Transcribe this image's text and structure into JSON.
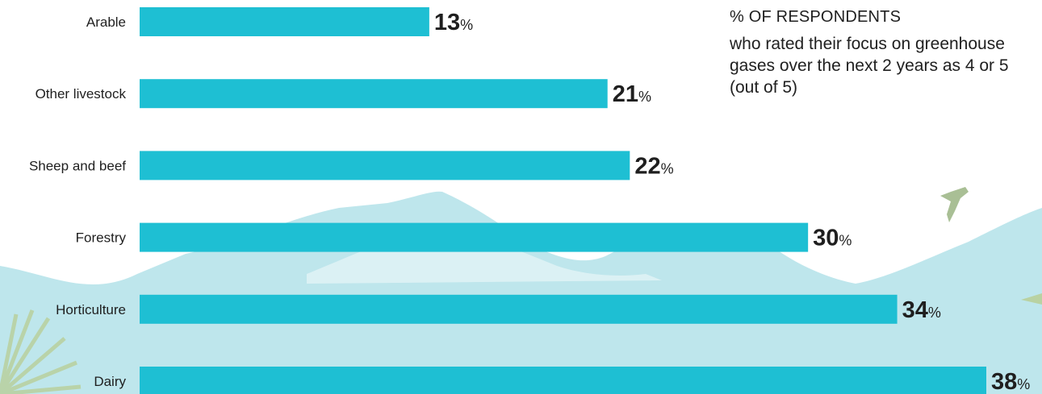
{
  "colors": {
    "bar": "#1ebfd3",
    "hills": "#bee6ec",
    "text": "#1f1f1f",
    "bird": "#a9bf95",
    "plant": "#b9d2a2"
  },
  "legend": {
    "title": "% of respondents",
    "description": "who rated their focus on greenhouse gases over the next 2 years as 4 or 5 (out of 5)"
  },
  "chart_data": {
    "type": "bar",
    "orientation": "horizontal",
    "categories": [
      "Arable",
      "Other livestock",
      "Sheep and beef",
      "Forestry",
      "Horticulture",
      "Dairy"
    ],
    "values": [
      13,
      21,
      22,
      30,
      34,
      38
    ],
    "value_suffix": "%",
    "xlim": [
      0,
      38
    ],
    "grid": false
  }
}
